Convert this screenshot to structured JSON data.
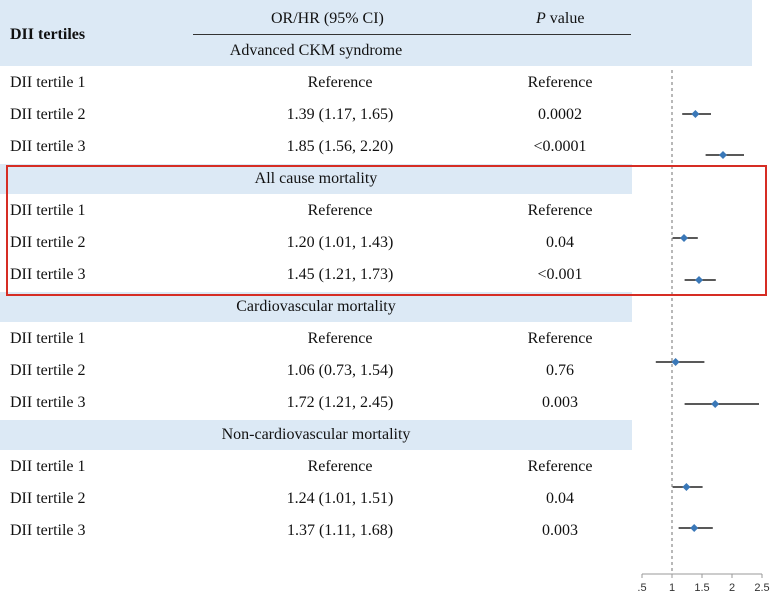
{
  "header": {
    "row_label": "DII tertiles",
    "estimate_label": "OR/HR (95% CI)",
    "p_label_italic": "P",
    "p_label_rest": " value"
  },
  "sections": [
    {
      "title": "Advanced CKM syndrome",
      "rows": [
        {
          "label": "DII tertile 1",
          "estimate": "Reference",
          "p": "Reference"
        },
        {
          "label": "DII tertile 2",
          "estimate": "1.39 (1.17, 1.65)",
          "p": "0.0002"
        },
        {
          "label": "DII tertile 3",
          "estimate": "1.85 (1.56, 2.20)",
          "p": "<0.0001"
        }
      ]
    },
    {
      "title": "All cause mortality",
      "rows": [
        {
          "label": "DII tertile 1",
          "estimate": "Reference",
          "p": "Reference"
        },
        {
          "label": "DII tertile 2",
          "estimate": "1.20 (1.01, 1.43)",
          "p": "0.04"
        },
        {
          "label": "DII tertile 3",
          "estimate": "1.45 (1.21, 1.73)",
          "p": "<0.001"
        }
      ]
    },
    {
      "title": "Cardiovascular mortality",
      "rows": [
        {
          "label": "DII tertile 1",
          "estimate": "Reference",
          "p": "Reference"
        },
        {
          "label": "DII tertile 2",
          "estimate": "1.06 (0.73, 1.54)",
          "p": "0.76"
        },
        {
          "label": "DII tertile 3",
          "estimate": "1.72 (1.21, 2.45)",
          "p": "0.003"
        }
      ]
    },
    {
      "title": "Non-cardiovascular mortality",
      "rows": [
        {
          "label": "DII tertile 1",
          "estimate": "Reference",
          "p": "Reference"
        },
        {
          "label": "DII tertile 2",
          "estimate": "1.24 (1.01, 1.51)",
          "p": "0.04"
        },
        {
          "label": "DII tertile 3",
          "estimate": "1.37 (1.11, 1.68)",
          "p": "0.003"
        }
      ]
    }
  ],
  "chart_data": {
    "type": "scatter",
    "xlim": [
      0.5,
      2.5
    ],
    "xticks": [
      ".5",
      "1",
      "1.5",
      "2",
      "2.5"
    ],
    "reference_line": 1,
    "reference_line_style": "dashed",
    "marker_color": "#3a78b8",
    "series": [
      {
        "estimate": 1.39,
        "lower": 1.17,
        "upper": 1.65
      },
      {
        "estimate": 1.85,
        "lower": 1.56,
        "upper": 2.2
      },
      {
        "estimate": 1.2,
        "lower": 1.01,
        "upper": 1.43
      },
      {
        "estimate": 1.45,
        "lower": 1.21,
        "upper": 1.73
      },
      {
        "estimate": 1.06,
        "lower": 0.73,
        "upper": 1.54
      },
      {
        "estimate": 1.72,
        "lower": 1.21,
        "upper": 2.45
      },
      {
        "estimate": 1.24,
        "lower": 1.01,
        "upper": 1.51
      },
      {
        "estimate": 1.37,
        "lower": 1.11,
        "upper": 1.68
      }
    ]
  },
  "highlight": {
    "section": "All cause mortality",
    "color": "#d62d24"
  }
}
